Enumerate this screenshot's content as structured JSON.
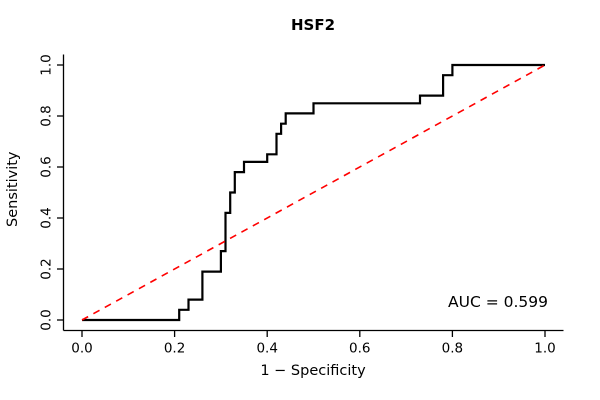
{
  "chart_data": {
    "type": "line",
    "title": "HSF2",
    "xlabel": "1 − Specificity",
    "ylabel": "Sensitivity",
    "xlim": [
      0,
      1
    ],
    "ylim": [
      0,
      1
    ],
    "grid": false,
    "legend": "none",
    "x_ticks": [
      0,
      0.2,
      0.4,
      0.6,
      0.8,
      1.0
    ],
    "x_tick_labels": [
      "0.0",
      "0.2",
      "0.4",
      "0.6",
      "0.8",
      "1.0"
    ],
    "y_ticks": [
      0,
      0.2,
      0.4,
      0.6,
      0.8,
      1.0
    ],
    "y_tick_labels": [
      "0.0",
      "0.2",
      "0.4",
      "0.6",
      "0.8",
      "1.0"
    ],
    "series": [
      {
        "name": "ROC curve",
        "color": "#000000",
        "line_style": "solid",
        "line_width": 2.2,
        "points": [
          [
            0.0,
            0.0
          ],
          [
            0.21,
            0.0
          ],
          [
            0.21,
            0.04
          ],
          [
            0.23,
            0.04
          ],
          [
            0.23,
            0.08
          ],
          [
            0.26,
            0.08
          ],
          [
            0.26,
            0.19
          ],
          [
            0.3,
            0.19
          ],
          [
            0.3,
            0.27
          ],
          [
            0.31,
            0.27
          ],
          [
            0.31,
            0.42
          ],
          [
            0.32,
            0.42
          ],
          [
            0.32,
            0.5
          ],
          [
            0.33,
            0.5
          ],
          [
            0.33,
            0.58
          ],
          [
            0.35,
            0.58
          ],
          [
            0.35,
            0.62
          ],
          [
            0.4,
            0.62
          ],
          [
            0.4,
            0.65
          ],
          [
            0.42,
            0.65
          ],
          [
            0.42,
            0.73
          ],
          [
            0.43,
            0.73
          ],
          [
            0.43,
            0.77
          ],
          [
            0.44,
            0.77
          ],
          [
            0.44,
            0.81
          ],
          [
            0.5,
            0.81
          ],
          [
            0.5,
            0.85
          ],
          [
            0.73,
            0.85
          ],
          [
            0.73,
            0.88
          ],
          [
            0.78,
            0.88
          ],
          [
            0.78,
            0.96
          ],
          [
            0.8,
            0.96
          ],
          [
            0.8,
            1.0
          ],
          [
            1.0,
            1.0
          ]
        ]
      },
      {
        "name": "chance line",
        "color": "#ff0000",
        "line_style": "dashed",
        "line_width": 1.6,
        "points": [
          [
            0,
            0
          ],
          [
            1,
            1
          ]
        ]
      }
    ],
    "annotations": [
      {
        "text": "AUC = 0.599",
        "x": 1.0,
        "y": 0.05,
        "align": "right"
      }
    ],
    "auc": 0.599
  }
}
